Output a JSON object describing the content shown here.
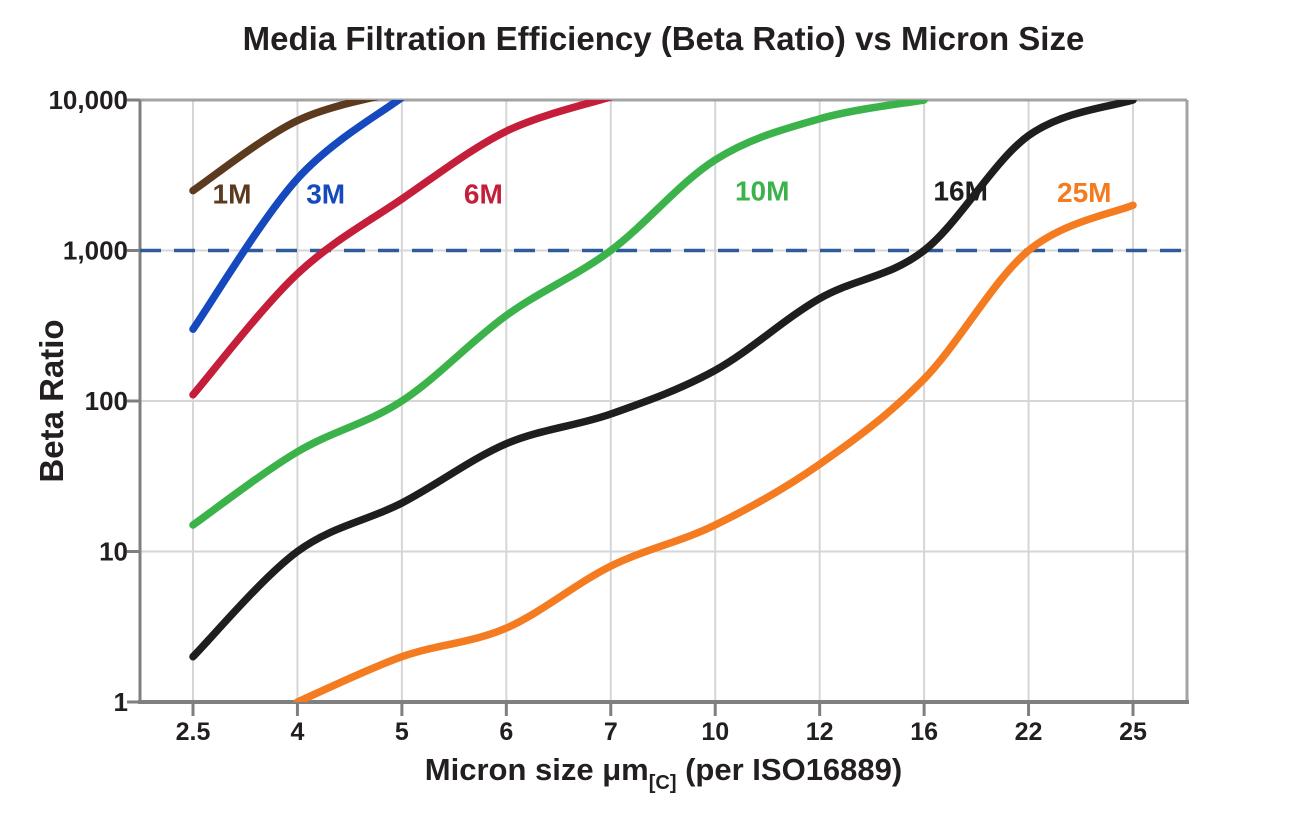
{
  "title": "Media Filtration Efficiency (Beta Ratio) vs Micron Size",
  "y_axis": {
    "label": "Beta Ratio",
    "ticks": [
      "10,000",
      "1,000",
      "100",
      "10",
      "1"
    ],
    "tick_values": [
      10000,
      1000,
      100,
      10,
      1
    ]
  },
  "x_axis": {
    "label_main": "Micron size μm",
    "label_sub": "[C]",
    "label_rest": " (per ISO16889)",
    "ticks": [
      "2.5",
      "4",
      "5",
      "6",
      "7",
      "10",
      "12",
      "16",
      "22",
      "25"
    ]
  },
  "reference_line": {
    "value": 1000,
    "style": "dashed",
    "color": "#2F5B9D"
  },
  "colors": {
    "text": "#231F20",
    "grid": "#D6D6D6",
    "frame": "#A3A3A3",
    "axis": "#7F7F7F",
    "background": "#FFFFFF"
  },
  "chart_data": {
    "type": "line",
    "x_scale": "category",
    "y_scale": "log",
    "grid": true,
    "legend_position": "inline-labels",
    "categories": [
      2.5,
      4,
      5,
      6,
      7,
      10,
      12,
      16,
      22,
      25
    ],
    "ylim": [
      1,
      10000
    ],
    "series": [
      {
        "name": "1M",
        "color": "#5B3A1D",
        "label_pos": [
          3.06,
          2400
        ],
        "points": [
          [
            2.5,
            2500
          ],
          [
            4,
            7300
          ],
          [
            5,
            11500
          ]
        ]
      },
      {
        "name": "3M",
        "color": "#1549BD",
        "label_pos": [
          4.27,
          2400
        ],
        "points": [
          [
            2.5,
            300
          ],
          [
            4,
            3000
          ],
          [
            5,
            10400
          ]
        ]
      },
      {
        "name": "6M",
        "color": "#C41E3A",
        "label_pos": [
          5.78,
          2400
        ],
        "points": [
          [
            2.5,
            110
          ],
          [
            4,
            700
          ],
          [
            5,
            2200
          ],
          [
            6,
            6200
          ],
          [
            7,
            10500
          ]
        ]
      },
      {
        "name": "10M",
        "color": "#3CB34A",
        "label_pos": [
          10.9,
          2500
        ],
        "points": [
          [
            2.5,
            15
          ],
          [
            4,
            46
          ],
          [
            5,
            100
          ],
          [
            6,
            370
          ],
          [
            7,
            1000
          ],
          [
            10,
            4000
          ],
          [
            12,
            7500
          ],
          [
            16,
            10000
          ]
        ]
      },
      {
        "name": "16M",
        "color": "#1E1E1E",
        "label_pos": [
          18.1,
          2500
        ],
        "points": [
          [
            2.5,
            2
          ],
          [
            4,
            10
          ],
          [
            5,
            21
          ],
          [
            6,
            52
          ],
          [
            7,
            82
          ],
          [
            10,
            160
          ],
          [
            12,
            480
          ],
          [
            16,
            1000
          ],
          [
            22,
            5800
          ],
          [
            25,
            10000
          ]
        ]
      },
      {
        "name": "25M",
        "color": "#F47B20",
        "label_pos": [
          23.6,
          2450
        ],
        "points": [
          [
            4,
            1
          ],
          [
            5,
            2
          ],
          [
            6,
            3.1
          ],
          [
            7,
            8
          ],
          [
            10,
            15
          ],
          [
            12,
            38
          ],
          [
            16,
            140
          ],
          [
            22,
            1000
          ],
          [
            25,
            2000
          ]
        ]
      }
    ]
  }
}
